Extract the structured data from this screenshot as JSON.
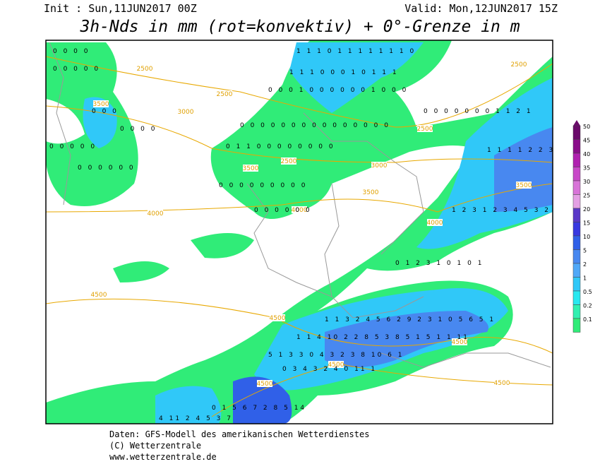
{
  "header": {
    "init": "Init : Sun,11JUN2017 00Z",
    "valid": "Valid: Mon,12JUN2017 15Z",
    "title": "3h-Nds in mm (rot=konvektiv) + 0°-Grenze in m"
  },
  "contour_labels": [
    "2500",
    "2500",
    "3000",
    "3500",
    "3500",
    "2500",
    "3000",
    "3500",
    "4000",
    "4000",
    "4000",
    "2500",
    "2500",
    "3500",
    "4500",
    "4500",
    "4500",
    "4500",
    "4500",
    "4500"
  ],
  "precip_labels": [
    "0 0 0 0",
    "0 0 0 0 0",
    "0 0 0",
    "0 0 0 0",
    "0 0 0 0 0",
    "0 0 0 0 0 0",
    "1 1 1 0 1 1 1 1 1 1 1 0",
    "1 1 1 0 0 0 1 0 1 1 1",
    "0 0 0 1 0 0 0 0 0 0 1 0 0 0",
    "0 0 0 0 0 0 0 0 0 0 0 0 0 0 0",
    "0 1 1 0 0 0 0 0 0 0 0",
    "0 0 0 0 0 0 0 0 0",
    "0 0 0 0 0 0",
    "0 0 0 0 0 0 0 1 1 2 1",
    "1 1 1 1 2 2 3",
    "1 2 3 1 2 3 4 5 3 2 1",
    "0 1 2 3 1 0 1 0 1",
    "1 1 3 2 4 5 6 2 9 2 3 1 0 5 6 5 1",
    "1 1 4 10 2 2 8 5 3 8 5 1 5 1 1 11",
    "5 1 3 3 0 4 3 2 3 8 10 6 1",
    "0 3 4 3 2 4 0 11 1",
    "0 1 5 6 7 2 8 5 14",
    "4 11 2 4 5 3 7"
  ],
  "colorbar": {
    "labels": [
      "50",
      "45",
      "40",
      "35",
      "30",
      "25",
      "20",
      "15",
      "10",
      "5",
      "2",
      "1",
      "0.5",
      "0.2",
      "0.1"
    ],
    "colors": [
      "#6a0a6a",
      "#8a0c8a",
      "#b020b0",
      "#c848c8",
      "#d874d8",
      "#e4a0e4",
      "#5a38c8",
      "#3838e0",
      "#3060e8",
      "#4888f0",
      "#50a8f8",
      "#30c8f8",
      "#28e8f0",
      "#30f0b0",
      "#30ec78"
    ]
  },
  "footer": {
    "line1": "Daten: GFS-Modell des amerikanischen Wetterdienstes",
    "line2": "(C) Wetterzentrale",
    "line3": "www.wetterzentrale.de"
  }
}
